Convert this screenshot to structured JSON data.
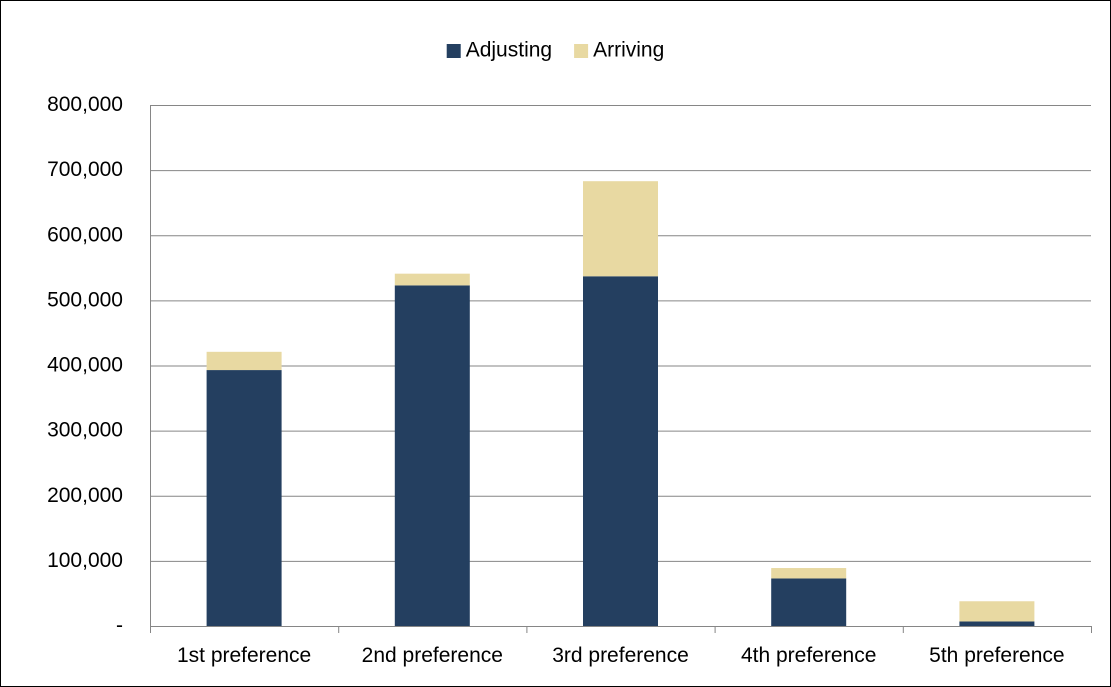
{
  "chart_data": {
    "type": "bar",
    "stacked": true,
    "categories": [
      "1st preference",
      "2nd preference",
      "3rd preference",
      "4th preference",
      "5th preference"
    ],
    "series": [
      {
        "name": "Adjusting",
        "color": "#243F60",
        "values": [
          393000,
          523000,
          537000,
          73000,
          7000
        ]
      },
      {
        "name": "Arriving",
        "color": "#E8D9A2",
        "values": [
          28000,
          18000,
          146000,
          16000,
          31000
        ]
      }
    ],
    "ylim": [
      0,
      800000
    ],
    "yticks": [
      0,
      100000,
      200000,
      300000,
      400000,
      500000,
      600000,
      700000,
      800000
    ],
    "ytick_labels": [
      "-",
      "100,000",
      "200,000",
      "300,000",
      "400,000",
      "500,000",
      "600,000",
      "700,000",
      "800,000"
    ],
    "grid": true,
    "legend_position": "top",
    "title": "",
    "xlabel": "",
    "ylabel": "",
    "colors": {
      "grid": "#868686",
      "axis": "#868686",
      "text": "#000000",
      "background": "#ffffff"
    }
  }
}
